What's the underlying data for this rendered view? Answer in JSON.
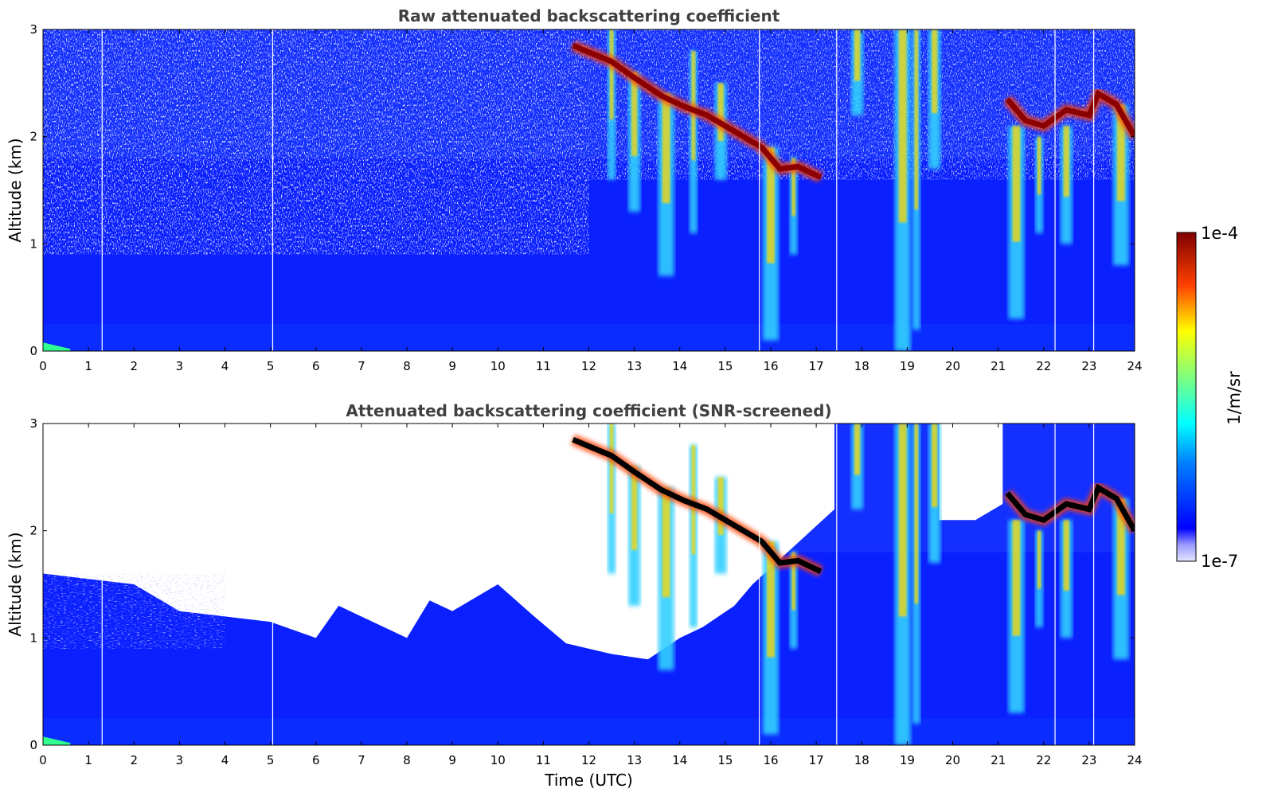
{
  "colorbar": {
    "label": "1/m/sr",
    "max_label": "1e-4",
    "min_label": "1e-7",
    "range": [
      1e-07,
      0.0001
    ],
    "scale": "log",
    "colormap": "jet"
  },
  "chart_data": [
    {
      "type": "heatmap",
      "title": "Raw attenuated backscattering coefficient",
      "xlabel": "",
      "ylabel": "Altitude (km)",
      "xlim": [
        0,
        24
      ],
      "ylim": [
        0,
        3
      ],
      "xticks": [
        "0",
        "1",
        "2",
        "3",
        "4",
        "5",
        "6",
        "7",
        "8",
        "9",
        "10",
        "11",
        "12",
        "13",
        "14",
        "15",
        "16",
        "17",
        "18",
        "19",
        "20",
        "21",
        "22",
        "23",
        "24"
      ],
      "yticks": [
        "0",
        "1",
        "2",
        "3"
      ],
      "screened": false
    },
    {
      "type": "heatmap",
      "title": "Attenuated backscattering coefficient (SNR-screened)",
      "xlabel": "Time (UTC)",
      "ylabel": "Altitude (km)",
      "xlim": [
        0,
        24
      ],
      "ylim": [
        0,
        3
      ],
      "xticks": [
        "0",
        "1",
        "2",
        "3",
        "4",
        "5",
        "6",
        "7",
        "8",
        "9",
        "10",
        "11",
        "12",
        "13",
        "14",
        "15",
        "16",
        "17",
        "18",
        "19",
        "20",
        "21",
        "22",
        "23",
        "24"
      ],
      "yticks": [
        "0",
        "1",
        "2",
        "3"
      ],
      "screened": true
    }
  ],
  "features": {
    "cloud_base_km": [
      [
        11.65,
        2.85
      ],
      [
        12.5,
        2.7
      ],
      [
        13.0,
        2.55
      ],
      [
        13.6,
        2.38
      ],
      [
        14.1,
        2.28
      ],
      [
        14.6,
        2.2
      ],
      [
        15.2,
        2.05
      ],
      [
        15.8,
        1.9
      ],
      [
        16.2,
        1.7
      ],
      [
        16.6,
        1.72
      ],
      [
        17.1,
        1.62
      ]
    ],
    "cloud_base_2_km": [
      [
        21.2,
        2.35
      ],
      [
        21.6,
        2.15
      ],
      [
        22.0,
        2.1
      ],
      [
        22.5,
        2.25
      ],
      [
        23.0,
        2.2
      ],
      [
        23.2,
        2.4
      ],
      [
        23.6,
        2.3
      ],
      [
        24.0,
        2.0
      ]
    ],
    "fallstreaks": [
      {
        "x": 12.5,
        "top": 3.0,
        "bottom": 1.6
      },
      {
        "x": 13.0,
        "top": 2.6,
        "bottom": 1.3
      },
      {
        "x": 13.7,
        "top": 2.4,
        "bottom": 0.7
      },
      {
        "x": 14.3,
        "top": 2.8,
        "bottom": 1.1
      },
      {
        "x": 14.9,
        "top": 2.5,
        "bottom": 1.6
      },
      {
        "x": 16.0,
        "top": 1.9,
        "bottom": 0.1
      },
      {
        "x": 16.5,
        "top": 1.8,
        "bottom": 0.9
      },
      {
        "x": 17.9,
        "top": 3.0,
        "bottom": 2.2
      },
      {
        "x": 18.9,
        "top": 3.0,
        "bottom": 0.0
      },
      {
        "x": 19.2,
        "top": 3.0,
        "bottom": 0.2
      },
      {
        "x": 19.6,
        "top": 3.0,
        "bottom": 1.7
      },
      {
        "x": 21.4,
        "top": 2.1,
        "bottom": 0.3
      },
      {
        "x": 21.9,
        "top": 2.0,
        "bottom": 1.1
      },
      {
        "x": 22.5,
        "top": 2.1,
        "bottom": 1.0
      },
      {
        "x": 23.7,
        "top": 2.3,
        "bottom": 0.8
      }
    ],
    "data_gaps_utc": [
      1.3,
      5.05,
      15.75,
      17.45,
      22.25,
      23.1
    ]
  }
}
